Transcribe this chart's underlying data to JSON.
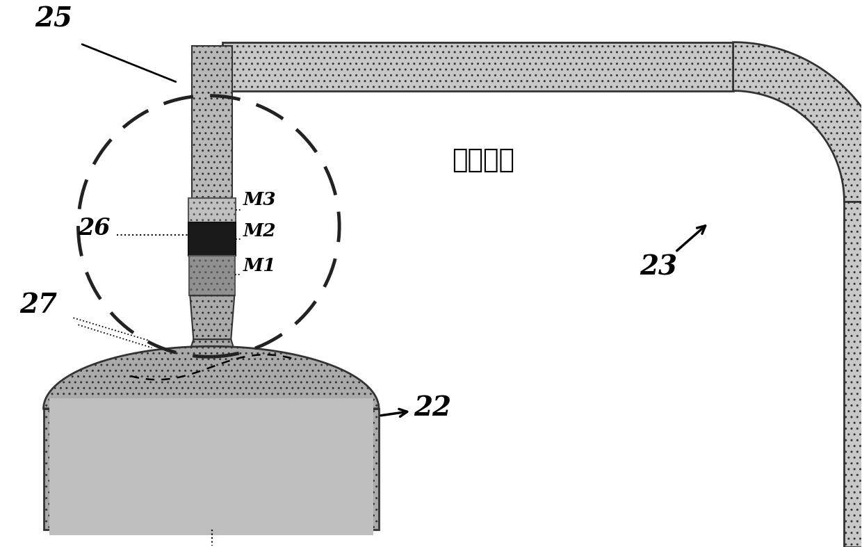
{
  "bg_color": "#ffffff",
  "pipe_fill": "#c8c8c8",
  "pipe_edge": "#333333",
  "nozzle_fill": "#b0b0b0",
  "m2_fill": "#1a1a1a",
  "vessel_fill": "#aaaaaa",
  "label_25": "25",
  "label_26": "26",
  "label_27": "27",
  "label_22": "22",
  "label_23": "23",
  "label_M1": "M1",
  "label_M2": "M2",
  "label_M3": "M3",
  "label_tech": "现有技术",
  "figsize": [
    12.4,
    7.87
  ],
  "dpi": 100
}
